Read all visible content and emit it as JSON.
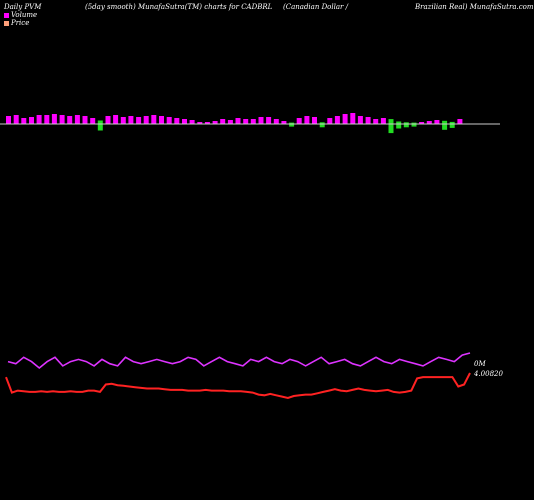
{
  "header": {
    "left": "Daily PVM",
    "mid": "(5day smooth) MunafaSutra(TM) charts for CADBRL",
    "right1": "(Canadian Dollar /",
    "right2": "Brazilian Real) MunafaSutra.com"
  },
  "legend": [
    {
      "label": "Volume",
      "color": "#ff00ff"
    },
    {
      "label": "Price",
      "color": "#ffa07a"
    }
  ],
  "colors": {
    "up": "#ff00ff",
    "down": "#22dd22",
    "volume_line": "#dd33ff",
    "price_line": "#ff2222",
    "baseline": "#cccccc"
  },
  "chart_data": {
    "type": "bar",
    "volume_bars": [
      {
        "v": 8,
        "up": true
      },
      {
        "v": 9,
        "up": true
      },
      {
        "v": 6,
        "up": true
      },
      {
        "v": 7,
        "up": true
      },
      {
        "v": 9,
        "up": true
      },
      {
        "v": 9,
        "up": true
      },
      {
        "v": 10,
        "up": true
      },
      {
        "v": 9,
        "up": true
      },
      {
        "v": 8,
        "up": true
      },
      {
        "v": 9,
        "up": true
      },
      {
        "v": 8,
        "up": true
      },
      {
        "v": 6,
        "up": true
      },
      {
        "v": 10,
        "up": false
      },
      {
        "v": 8,
        "up": true
      },
      {
        "v": 9,
        "up": true
      },
      {
        "v": 7,
        "up": true
      },
      {
        "v": 8,
        "up": true
      },
      {
        "v": 7,
        "up": true
      },
      {
        "v": 8,
        "up": true
      },
      {
        "v": 9,
        "up": true
      },
      {
        "v": 8,
        "up": true
      },
      {
        "v": 7,
        "up": true
      },
      {
        "v": 6,
        "up": true
      },
      {
        "v": 5,
        "up": true
      },
      {
        "v": 4,
        "up": true
      },
      {
        "v": 2,
        "up": true
      },
      {
        "v": 2,
        "up": true
      },
      {
        "v": 3,
        "up": true
      },
      {
        "v": 5,
        "up": true
      },
      {
        "v": 4,
        "up": true
      },
      {
        "v": 6,
        "up": true
      },
      {
        "v": 5,
        "up": true
      },
      {
        "v": 5,
        "up": true
      },
      {
        "v": 7,
        "up": true
      },
      {
        "v": 7,
        "up": true
      },
      {
        "v": 5,
        "up": true
      },
      {
        "v": 3,
        "up": true
      },
      {
        "v": 4,
        "up": false
      },
      {
        "v": 6,
        "up": true
      },
      {
        "v": 8,
        "up": true
      },
      {
        "v": 7,
        "up": true
      },
      {
        "v": 5,
        "up": false
      },
      {
        "v": 6,
        "up": true
      },
      {
        "v": 8,
        "up": true
      },
      {
        "v": 10,
        "up": true
      },
      {
        "v": 11,
        "up": true
      },
      {
        "v": 8,
        "up": true
      },
      {
        "v": 7,
        "up": true
      },
      {
        "v": 5,
        "up": true
      },
      {
        "v": 6,
        "up": true
      },
      {
        "v": 14,
        "up": false
      },
      {
        "v": 7,
        "up": false
      },
      {
        "v": 5,
        "up": false
      },
      {
        "v": 4,
        "up": false
      },
      {
        "v": 2,
        "up": true
      },
      {
        "v": 3,
        "up": true
      },
      {
        "v": 4,
        "up": true
      },
      {
        "v": 9,
        "up": false
      },
      {
        "v": 6,
        "up": false
      },
      {
        "v": 5,
        "up": true
      }
    ],
    "volume_line": [
      10,
      9,
      12,
      10,
      7,
      10,
      12,
      8,
      10,
      11,
      10,
      8,
      11,
      9,
      8,
      12,
      10,
      9,
      10,
      11,
      10,
      9,
      10,
      12,
      11,
      8,
      10,
      12,
      10,
      9,
      8,
      11,
      10,
      12,
      10,
      9,
      11,
      10,
      8,
      10,
      12,
      9,
      10,
      11,
      9,
      8,
      10,
      12,
      10,
      9,
      11,
      10,
      9,
      8,
      10,
      12,
      11,
      10,
      13,
      14
    ],
    "price": [
      4.0076,
      4.0053,
      4.0056,
      4.0055,
      4.0054,
      4.0054,
      4.0055,
      4.0054,
      4.0055,
      4.0054,
      4.0054,
      4.0055,
      4.0054,
      4.0054,
      4.0056,
      4.0056,
      4.0054,
      4.0065,
      4.0066,
      4.0064,
      4.0063,
      4.0062,
      4.0061,
      4.006,
      4.0059,
      4.0059,
      4.0059,
      4.0058,
      4.0057,
      4.0057,
      4.0057,
      4.0056,
      4.0056,
      4.0056,
      4.0057,
      4.0056,
      4.0056,
      4.0056,
      4.0055,
      4.0055,
      4.0055,
      4.0054,
      4.0053,
      4.005,
      4.0049,
      4.0051,
      4.0049,
      4.0047,
      4.0045,
      4.0048,
      4.0049,
      4.005,
      4.005,
      4.0052,
      4.0054,
      4.0056,
      4.0058,
      4.0056,
      4.0055,
      4.0057,
      4.0059,
      4.0057,
      4.0056,
      4.0055,
      4.0056,
      4.0057,
      4.0054,
      4.0053,
      4.0054,
      4.0056,
      4.0074,
      4.0076,
      4.0076,
      4.0076,
      4.0076,
      4.0076,
      4.0076,
      4.0062,
      4.0065,
      4.0082
    ],
    "volume_end_label": "0M",
    "price_end_label": "4.00820"
  }
}
